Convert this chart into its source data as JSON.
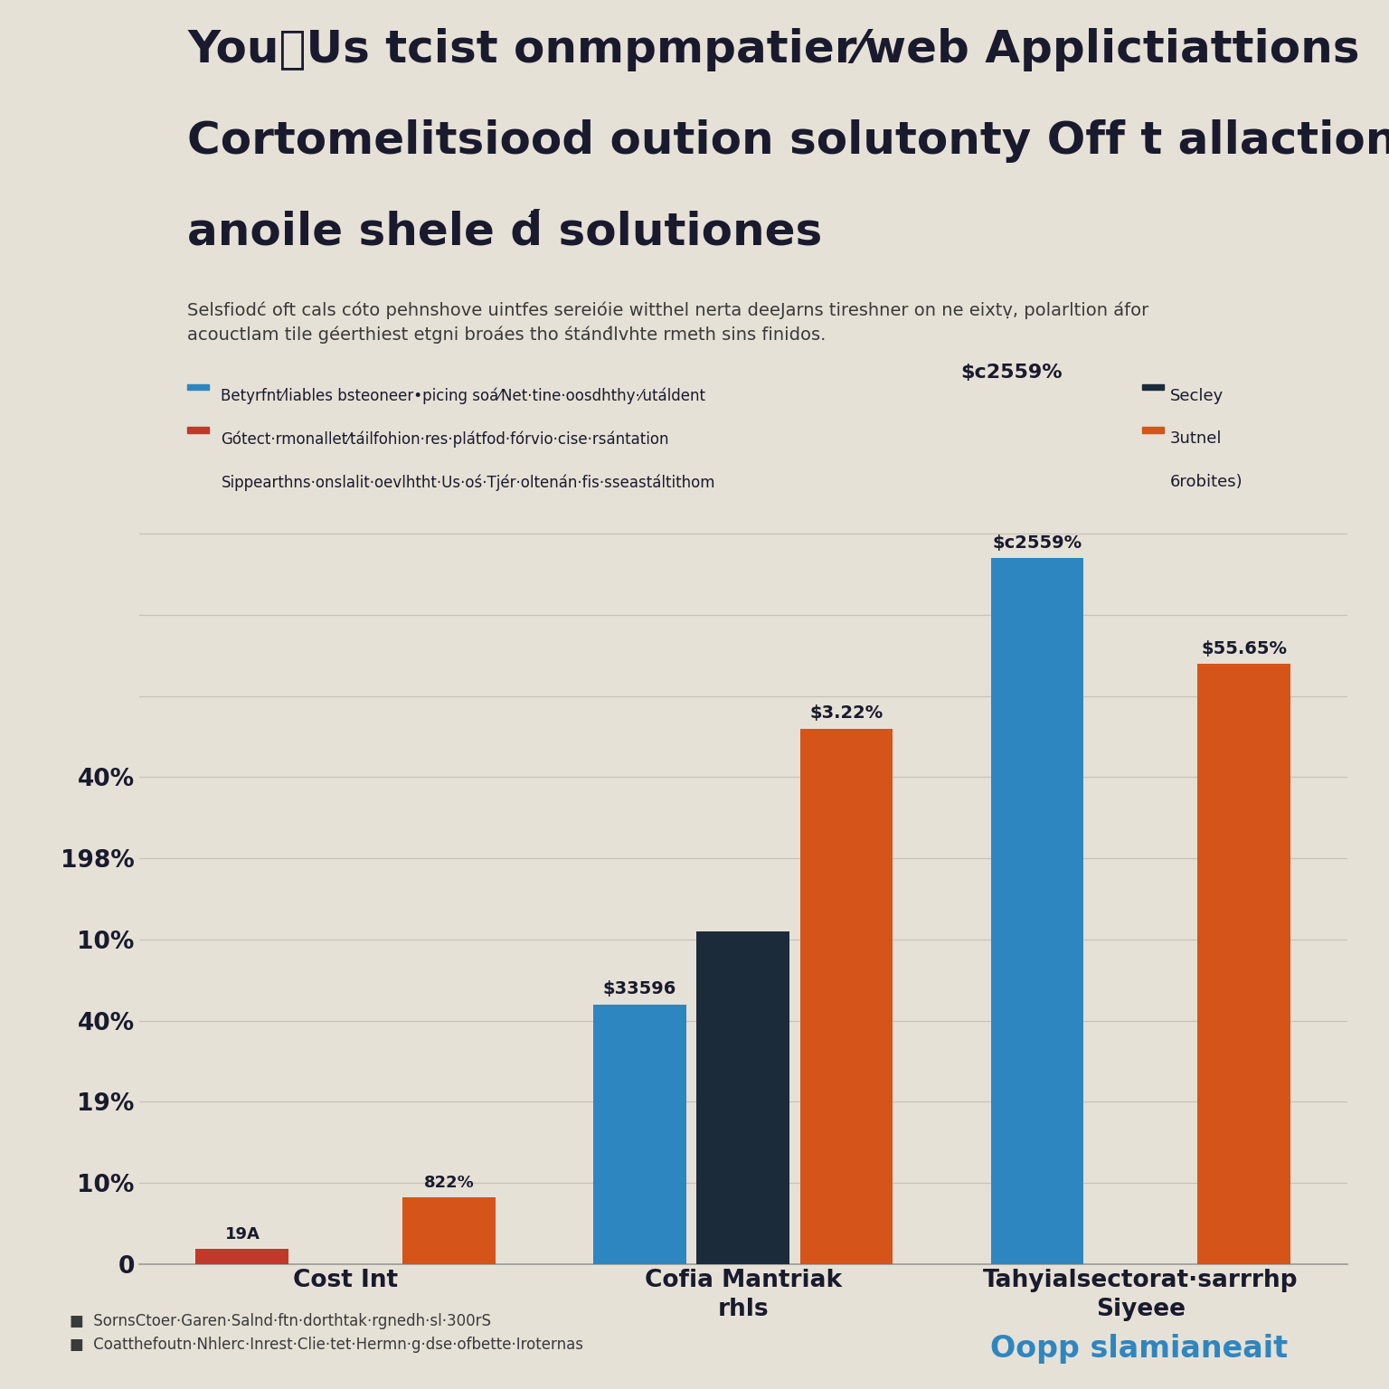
{
  "title_line1": "YouⳈUs tcist onmpmpatier⁄web Applictiattions",
  "title_line2": "Cortomelitsiood oution solutonty Off t allactions",
  "title_line3": "anoile shele d́ solutiones",
  "subtitle": "Selsfiodć oft cals cóto pehnshove uintfes sereióie witthel nerta deeJarns tireshner on ne eixtṿ, polarltion áfor\nacouctlam tile géerthiest etgni broáes tho śtánd́lvhte rmeth sins finidos.",
  "legend_left_line1": "Betyrfnt⁄liables bsteoneer•picing soá⁄Net·tine·oosdhthy·⁄utáldent",
  "legend_left_line2": "Gótect·rmonallet⁄táilfohion·res·plátfod·fórvio·cise·rsántation",
  "legend_left_line3": "Sippearthns·onslalit·oevlhtht·Us·oś·Tjér·oltenán·fis·sseastáltithom",
  "legend_right_line1": "Secley",
  "legend_right_line2": "3utnel",
  "legend_right_line3": "6robites)",
  "val_g2_blue": "$c2559%",
  "val_g2_orange": "$55.65%",
  "val_g1_blue": "$33596",
  "val_g1_orange": "$3.22%",
  "val_g0_red": "19A",
  "val_g0_orange": "822%",
  "ytick_labels": [
    "0",
    "10%",
    "19%",
    "40%",
    "10%",
    "198%",
    "40%"
  ],
  "ytick_positions": [
    0,
    100,
    200,
    300,
    400,
    500,
    600
  ],
  "xlabel_0": "Cost Int",
  "xlabel_1": "Cofia Mantriak\nrhls",
  "xlabel_2": "Tahyialsectorat·sarrrhp\nSiyeee",
  "footer_line1": "SornsCtoer·Garen·Salnd·ftn·dorthtak·rgnedh·sl·300rS",
  "footer_line2": "Coatthefoutn·Nhlerc·Inrest·Clie·tet·Hermn·g·dse·ofbette·Iroternas",
  "watermark": "Oopp slamianeait",
  "background_color": "#e6e1d6",
  "grid_color": "#c8c3b8",
  "text_color": "#1a1a2e",
  "bar_blue": "#2e86c1",
  "bar_navy": "#1c2b3a",
  "bar_orange": "#d4541a",
  "bar_red": "#c0392b",
  "group0_vals": [
    19,
    0,
    82
  ],
  "group1_vals": [
    320,
    410,
    660
  ],
  "group2_vals": [
    870,
    0,
    740
  ],
  "ylim": [
    0,
    950
  ],
  "grid_lines": [
    100,
    200,
    300,
    400,
    500,
    600,
    700,
    800,
    900
  ]
}
